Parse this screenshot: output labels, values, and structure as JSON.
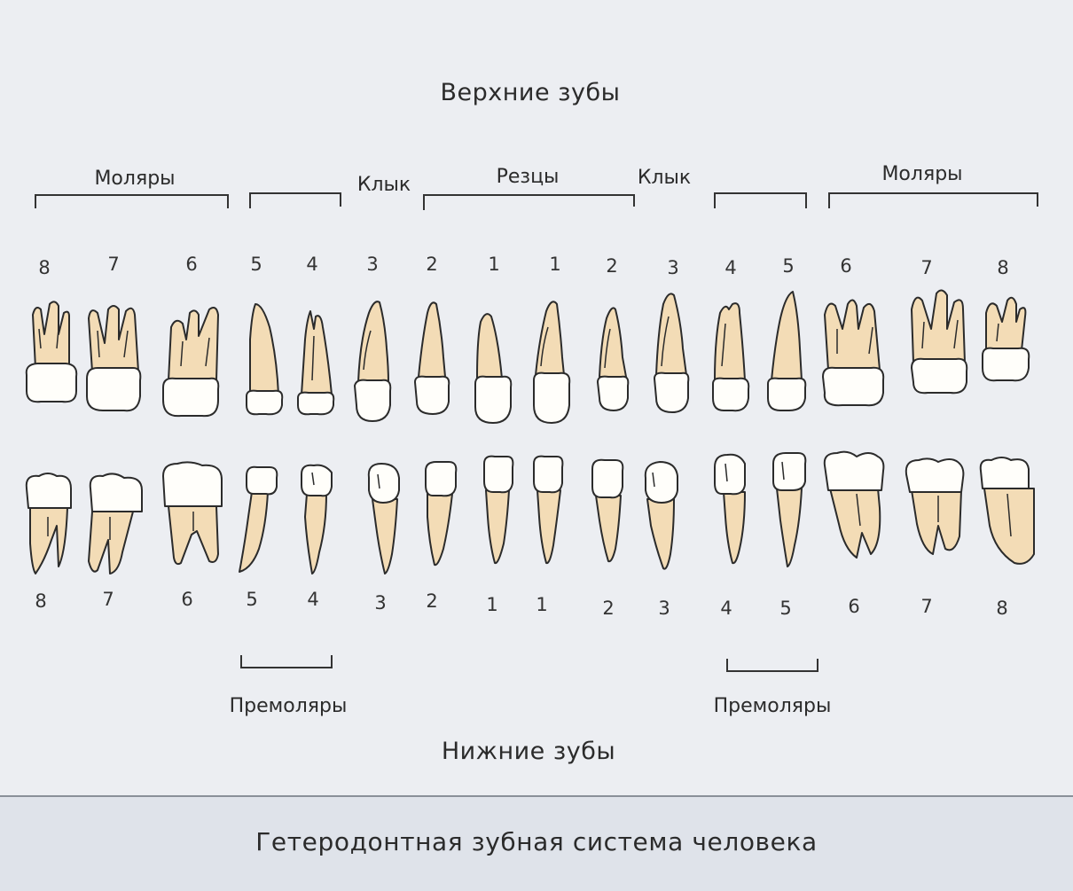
{
  "upper_title": "Верхние зубы",
  "lower_title": "Нижние зубы",
  "upper_groups": [
    {
      "label": "Моляры"
    },
    {
      "label": "Клык"
    },
    {
      "label": "Резцы"
    },
    {
      "label": "Клык"
    },
    {
      "label": "Моляры"
    }
  ],
  "lower_groups": [
    {
      "label": "Премоляры"
    },
    {
      "label": "Премоляры"
    }
  ],
  "upper_teeth": [
    {
      "number": "8",
      "type": "molar"
    },
    {
      "number": "7",
      "type": "molar"
    },
    {
      "number": "6",
      "type": "molar"
    },
    {
      "number": "5",
      "type": "premolar"
    },
    {
      "number": "4",
      "type": "premolar"
    },
    {
      "number": "3",
      "type": "canine"
    },
    {
      "number": "2",
      "type": "incisor"
    },
    {
      "number": "1",
      "type": "incisor"
    },
    {
      "number": "1",
      "type": "incisor"
    },
    {
      "number": "2",
      "type": "incisor"
    },
    {
      "number": "3",
      "type": "canine"
    },
    {
      "number": "4",
      "type": "premolar"
    },
    {
      "number": "5",
      "type": "premolar"
    },
    {
      "number": "6",
      "type": "molar"
    },
    {
      "number": "7",
      "type": "molar"
    },
    {
      "number": "8",
      "type": "molar"
    }
  ],
  "lower_teeth": [
    {
      "number": "8",
      "type": "molar"
    },
    {
      "number": "7",
      "type": "molar"
    },
    {
      "number": "6",
      "type": "molar"
    },
    {
      "number": "5",
      "type": "premolar"
    },
    {
      "number": "4",
      "type": "premolar"
    },
    {
      "number": "3",
      "type": "canine"
    },
    {
      "number": "2",
      "type": "incisor"
    },
    {
      "number": "1",
      "type": "incisor"
    },
    {
      "number": "1",
      "type": "incisor"
    },
    {
      "number": "2",
      "type": "incisor"
    },
    {
      "number": "3",
      "type": "canine"
    },
    {
      "number": "4",
      "type": "premolar"
    },
    {
      "number": "5",
      "type": "premolar"
    },
    {
      "number": "6",
      "type": "molar"
    },
    {
      "number": "7",
      "type": "molar"
    },
    {
      "number": "8",
      "type": "molar"
    }
  ],
  "footer_caption": "Гетеродонтная зубная система человека",
  "colors": {
    "background": "#eceef2",
    "root": "#f3dcb6",
    "crown": "#fffefa",
    "footer": "#dfe3ea"
  }
}
